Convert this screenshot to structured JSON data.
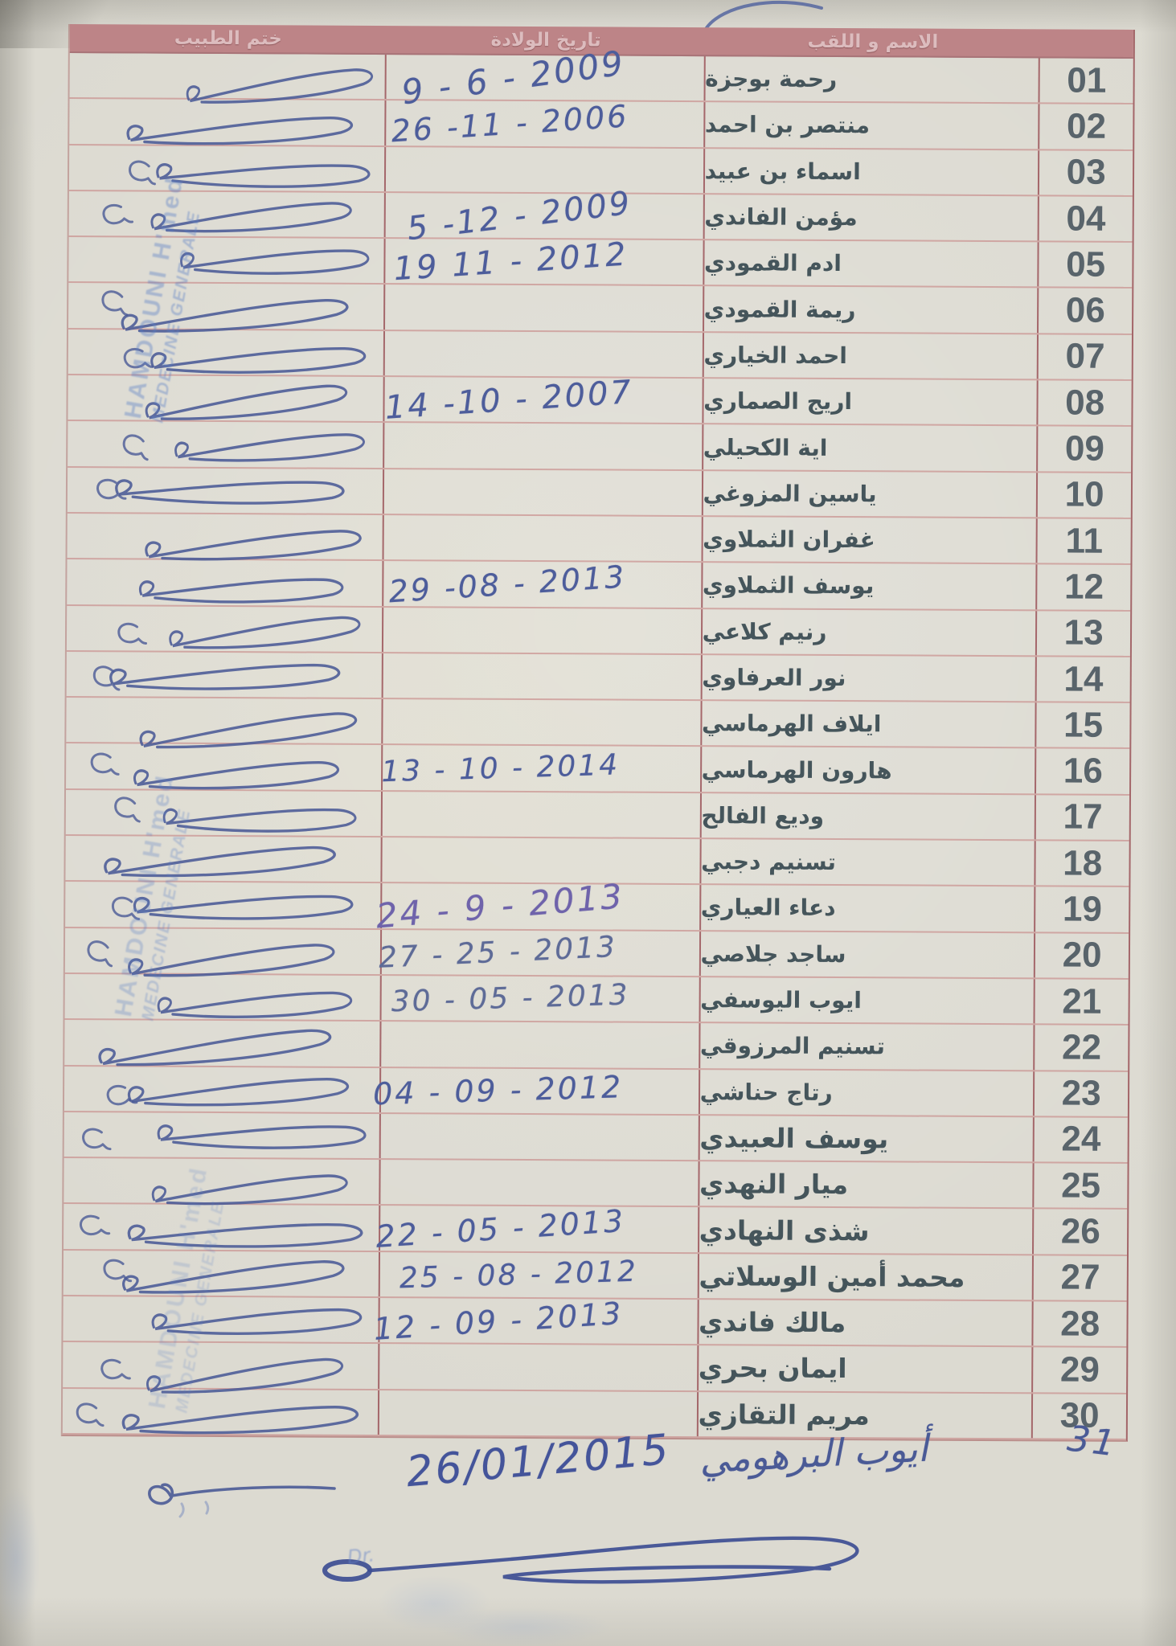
{
  "table": {
    "headers": {
      "name": "الاسم و اللقب",
      "birth_date": "تاريخ الولادة",
      "doctor_stamp": "ختم الطبيب",
      "number": ""
    },
    "rows": [
      {
        "num": "01",
        "name": "رحمة بوجزة",
        "date": "9 - 6 - 2009"
      },
      {
        "num": "02",
        "name": "منتصر بن احمد",
        "date": "26 -11 - 2006"
      },
      {
        "num": "03",
        "name": "اسماء بن عبيد",
        "date": ""
      },
      {
        "num": "04",
        "name": "مؤمن الفاندي",
        "date": "5 -12 - 2009"
      },
      {
        "num": "05",
        "name": "ادم القمودي",
        "date": "19 11 - 2012"
      },
      {
        "num": "06",
        "name": "ريمة القمودي",
        "date": ""
      },
      {
        "num": "07",
        "name": "احمد الخياري",
        "date": ""
      },
      {
        "num": "08",
        "name": "اريج الصماري",
        "date": "14 -10 - 2007"
      },
      {
        "num": "09",
        "name": "اية الكحيلي",
        "date": ""
      },
      {
        "num": "10",
        "name": "ياسين المزوغي",
        "date": ""
      },
      {
        "num": "11",
        "name": "غفران الثملاوي",
        "date": ""
      },
      {
        "num": "12",
        "name": "يوسف الثملاوي",
        "date": "29 -08 - 2013"
      },
      {
        "num": "13",
        "name": "رنيم كلاعي",
        "date": ""
      },
      {
        "num": "14",
        "name": "نور العرفاوي",
        "date": ""
      },
      {
        "num": "15",
        "name": "ايلاف الهرماسي",
        "date": ""
      },
      {
        "num": "16",
        "name": "هارون الهرماسي",
        "date": "13 - 10 - 2014"
      },
      {
        "num": "17",
        "name": "وديع الفالح",
        "date": ""
      },
      {
        "num": "18",
        "name": "تسنيم دجبي",
        "date": ""
      },
      {
        "num": "19",
        "name": "دعاء العياري",
        "date": "24 - 9 - 2013"
      },
      {
        "num": "20",
        "name": "ساجد جلاصي",
        "date": "27 - 25 - 2013"
      },
      {
        "num": "21",
        "name": "ايوب اليوسفي",
        "date": "30 - 05 - 2013"
      },
      {
        "num": "22",
        "name": "تسنيم المرزوقي",
        "date": ""
      },
      {
        "num": "23",
        "name": "رتاج حناشي",
        "date": "04 - 09 - 2012"
      },
      {
        "num": "24",
        "name": "يوسف العبيدي",
        "date": ""
      },
      {
        "num": "25",
        "name": "ميار النهدي",
        "date": ""
      },
      {
        "num": "26",
        "name": "شذى النهادي",
        "date": "22 - 05 - 2013"
      },
      {
        "num": "27",
        "name": "محمد أمين الوسلاتي",
        "date": "25 - 08 - 2012"
      },
      {
        "num": "28",
        "name": "مالك فاندي",
        "date": "12 - 09 - 2013"
      },
      {
        "num": "29",
        "name": "ايمان بحري",
        "date": ""
      },
      {
        "num": "30",
        "name": "مريم التقازي",
        "date": ""
      }
    ]
  },
  "stamp": {
    "line1": "HAMDOUNI H'med",
    "line2": "MEDECINE GENERALE"
  },
  "footer": {
    "number": "31",
    "name": "أيوب البرهومي",
    "date": "26/01/2015",
    "ghost_text": "Dr."
  },
  "colors": {
    "header_bg": "#bd8487",
    "header_text": "#dcbcbe",
    "grid_line": "#c17878",
    "grid_divider": "#a05a5e",
    "name_text": "#45555b",
    "number_text": "#59646b",
    "ink_blue": "#4a5a96",
    "stamp_blue": "#6e8ec6",
    "paper": "#dcdad1"
  }
}
